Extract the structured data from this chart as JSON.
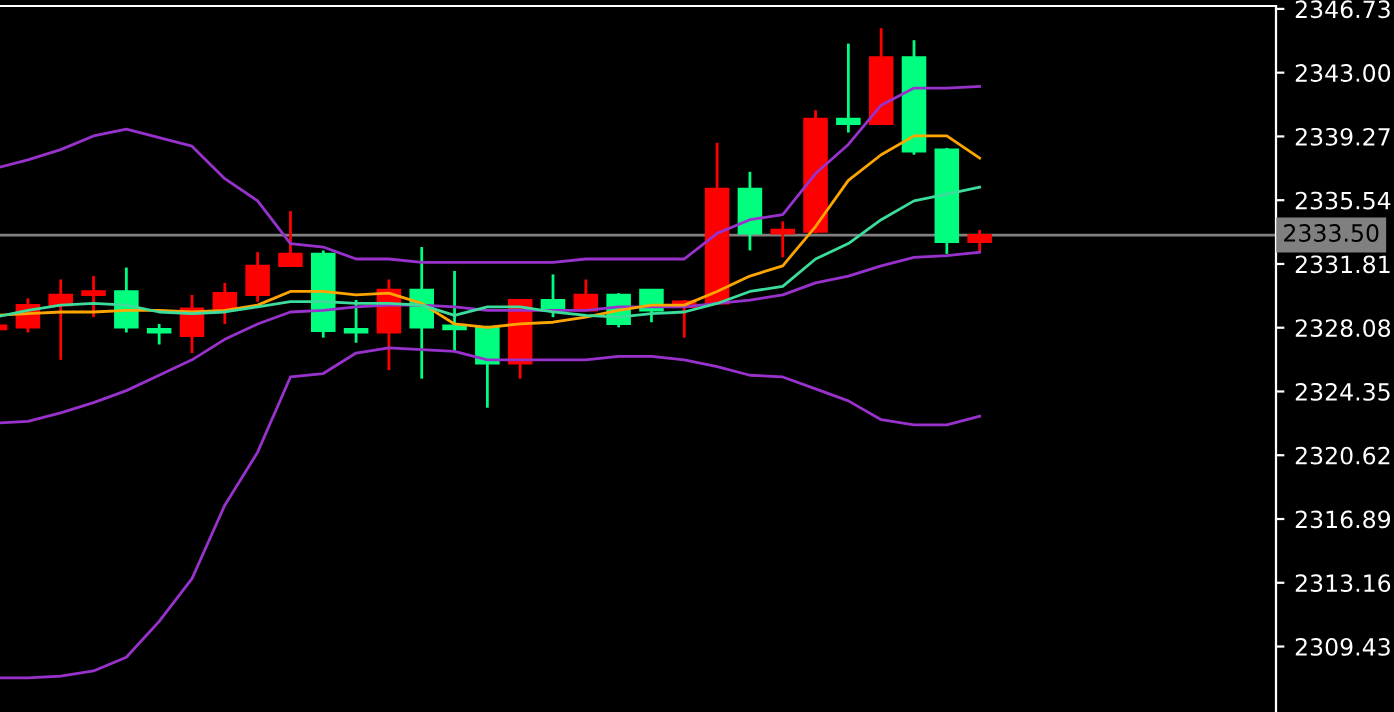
{
  "chart_data": {
    "type": "candlestick",
    "categories": [
      null,
      null,
      null,
      null,
      null,
      null,
      null,
      null,
      null,
      null,
      null,
      null,
      null,
      null,
      null,
      null,
      null,
      null,
      null,
      null,
      null,
      null,
      null,
      null,
      null,
      null,
      null,
      null,
      null,
      null,
      null
    ],
    "ohlc": [
      [
        2328.0,
        2328.3,
        2327.9,
        2328.2
      ],
      [
        2328.1,
        2329.8,
        2327.8,
        2329.4
      ],
      [
        2329.4,
        2330.9,
        2326.2,
        2330.0
      ],
      [
        2330.0,
        2331.1,
        2328.7,
        2330.2
      ],
      [
        2330.2,
        2331.6,
        2327.8,
        2328.1
      ],
      [
        2328.0,
        2328.3,
        2327.1,
        2327.8
      ],
      [
        2327.6,
        2330.0,
        2326.6,
        2329.2
      ],
      [
        2329.2,
        2330.7,
        2328.3,
        2330.1
      ],
      [
        2330.0,
        2332.5,
        2329.6,
        2331.7
      ],
      [
        2331.7,
        2334.9,
        2331.7,
        2332.4
      ],
      [
        2332.4,
        2332.6,
        2327.5,
        2327.9
      ],
      [
        2328.0,
        2329.7,
        2327.2,
        2327.8
      ],
      [
        2327.8,
        2330.9,
        2325.6,
        2330.3
      ],
      [
        2330.3,
        2332.8,
        2325.1,
        2328.1
      ],
      [
        2328.2,
        2331.4,
        2326.7,
        2328.0
      ],
      [
        2328.1,
        2328.2,
        2323.4,
        2326.0
      ],
      [
        2326.0,
        2329.7,
        2325.1,
        2329.7
      ],
      [
        2329.7,
        2331.2,
        2328.7,
        2329.1
      ],
      [
        2329.1,
        2330.9,
        2329.1,
        2330.0
      ],
      [
        2330.0,
        2330.1,
        2328.1,
        2328.3
      ],
      [
        2330.3,
        2330.3,
        2328.4,
        2329.1
      ],
      [
        2329.3,
        2329.7,
        2327.5,
        2329.6
      ],
      [
        2329.5,
        2338.9,
        2329.5,
        2336.2
      ],
      [
        2336.2,
        2337.2,
        2332.6,
        2333.6
      ],
      [
        2333.6,
        2334.3,
        2332.2,
        2333.8
      ],
      [
        2333.7,
        2340.8,
        2333.6,
        2340.3
      ],
      [
        2340.3,
        2344.7,
        2339.5,
        2340.0
      ],
      [
        2340.0,
        2345.6,
        2340.0,
        2343.9
      ],
      [
        2343.9,
        2344.9,
        2338.2,
        2338.4
      ],
      [
        2338.5,
        2338.6,
        2332.4,
        2333.1
      ],
      [
        2333.1,
        2333.8,
        2332.5,
        2333.5
      ]
    ],
    "colors": [
      "#ff0000",
      "#ff0000",
      "#ff0000",
      "#ff0000",
      "#00ff7f",
      "#00ff7f",
      "#ff0000",
      "#ff0000",
      "#ff0000",
      "#ff0000",
      "#00ff7f",
      "#00ff7f",
      "#ff0000",
      "#00ff7f",
      "#00ff7f",
      "#00ff7f",
      "#ff0000",
      "#00ff7f",
      "#ff0000",
      "#00ff7f",
      "#00ff7f",
      "#ff0000",
      "#ff0000",
      "#00ff7f",
      "#ff0000",
      "#ff0000",
      "#00ff7f",
      "#ff0000",
      "#00ff7f",
      "#00ff7f",
      "#ff0000"
    ],
    "series": [
      {
        "type": "line",
        "color": "#9932cc",
        "values": [
          2337.4,
          2337.9,
          2338.5,
          2339.3,
          2339.7,
          2339.2,
          2338.7,
          2336.8,
          2335.5,
          2333.0,
          2332.8,
          2332.1,
          2332.1,
          2331.9,
          2331.9,
          2331.9,
          2331.9,
          2331.9,
          2332.1,
          2332.1,
          2332.1,
          2332.1,
          2333.6,
          2334.4,
          2334.7,
          2337.1,
          2338.8,
          2341.1,
          2342.1,
          2342.1,
          2342.2
        ]
      },
      {
        "type": "line",
        "color": "#9932cc",
        "values": [
          2322.5,
          2322.6,
          2323.1,
          2323.7,
          2324.4,
          2325.3,
          2326.2,
          2327.4,
          2328.3,
          2329.0,
          2329.1,
          2329.3,
          2329.4,
          2329.4,
          2329.3,
          2329.1,
          2329.1,
          2329.1,
          2329.1,
          2329.3,
          2329.3,
          2329.3,
          2329.5,
          2329.7,
          2330.0,
          2330.7,
          2331.1,
          2331.7,
          2332.2,
          2332.3,
          2332.5
        ]
      },
      {
        "type": "line",
        "color": "#9932cc",
        "values": [
          2307.6,
          2307.6,
          2307.7,
          2308.0,
          2308.8,
          2310.9,
          2313.4,
          2317.7,
          2320.8,
          2325.2,
          2325.4,
          2326.6,
          2326.9,
          2326.8,
          2326.7,
          2326.2,
          2326.2,
          2326.2,
          2326.2,
          2326.4,
          2326.4,
          2326.2,
          2325.8,
          2325.3,
          2325.2,
          2324.5,
          2323.8,
          2322.7,
          2322.4,
          2322.4,
          2322.9
        ]
      },
      {
        "type": "line",
        "color": "#ffa500",
        "values": [
          2328.8,
          2328.9,
          2329.0,
          2329.0,
          2329.1,
          2329.1,
          2329.0,
          2329.1,
          2329.4,
          2330.2,
          2330.2,
          2330.0,
          2330.1,
          2329.5,
          2328.3,
          2328.1,
          2328.3,
          2328.4,
          2328.7,
          2329.1,
          2329.4,
          2329.4,
          2330.2,
          2331.1,
          2331.7,
          2334.0,
          2336.7,
          2338.2,
          2339.3,
          2339.3,
          2338.0
        ]
      },
      {
        "type": "line",
        "color": "#3cdc9c",
        "values": [
          2328.7,
          2329.1,
          2329.4,
          2329.5,
          2329.4,
          2329.0,
          2328.9,
          2329.0,
          2329.3,
          2329.6,
          2329.6,
          2329.5,
          2329.5,
          2329.4,
          2328.8,
          2329.3,
          2329.3,
          2329.0,
          2328.8,
          2328.7,
          2328.9,
          2329.0,
          2329.5,
          2330.2,
          2330.5,
          2332.1,
          2333.0,
          2334.4,
          2335.5,
          2335.9,
          2336.3
        ]
      }
    ],
    "ylim": [
      2305.6,
      2346.9
    ],
    "yticks": [
      {
        "value": 2346.73,
        "label": "2346.73"
      },
      {
        "value": 2343.0,
        "label": "2343.00"
      },
      {
        "value": 2339.27,
        "label": "2339.27"
      },
      {
        "value": 2335.54,
        "label": "2335.54"
      },
      {
        "value": 2331.81,
        "label": "2331.81"
      },
      {
        "value": 2328.08,
        "label": "2328.08"
      },
      {
        "value": 2324.35,
        "label": "2324.35"
      },
      {
        "value": 2320.62,
        "label": "2320.62"
      },
      {
        "value": 2316.89,
        "label": "2316.89"
      },
      {
        "value": 2313.16,
        "label": "2313.16"
      },
      {
        "value": 2309.43,
        "label": "2309.43"
      }
    ],
    "tick_labels": "y",
    "grid": false,
    "ref_lines": [
      {
        "axis": "y",
        "value": 2333.5,
        "label": "2333.50",
        "color": "#808080"
      }
    ]
  }
}
